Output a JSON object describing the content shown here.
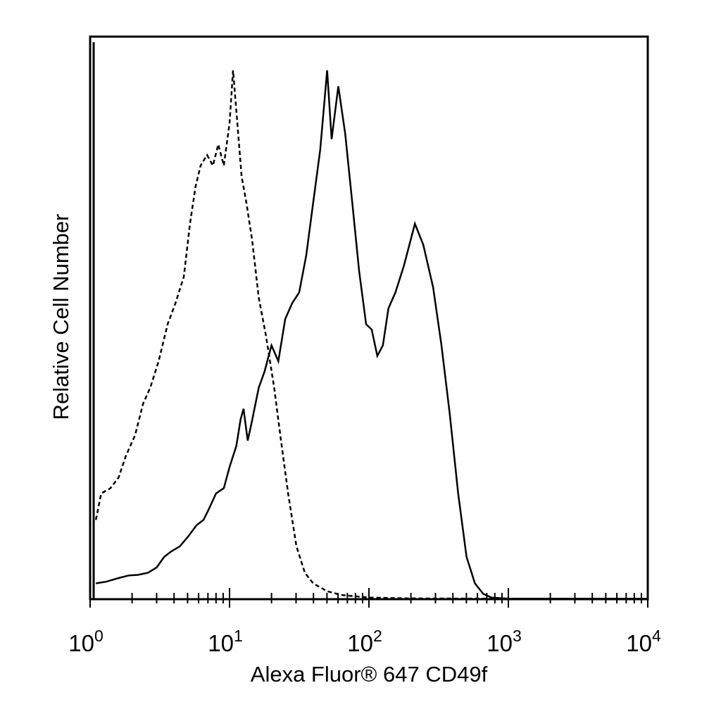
{
  "chart_data": {
    "type": "line",
    "title": "",
    "xlabel": "Alexa Fluor® 647 CD49f",
    "ylabel": "Relative Cell Number",
    "x_scale": "log",
    "xlim": [
      1,
      10000
    ],
    "ylim": [
      0,
      100
    ],
    "grid": false,
    "legend": "none",
    "x_ticks": [
      {
        "base": "10",
        "exp": "0",
        "value": 1
      },
      {
        "base": "10",
        "exp": "1",
        "value": 10
      },
      {
        "base": "10",
        "exp": "2",
        "value": 100
      },
      {
        "base": "10",
        "exp": "3",
        "value": 1000
      },
      {
        "base": "10",
        "exp": "4",
        "value": 10000
      }
    ],
    "series": [
      {
        "style": "dashed",
        "color": "#000000",
        "points": [
          [
            1.1,
            15
          ],
          [
            1.2,
            20
          ],
          [
            1.4,
            21
          ],
          [
            1.6,
            23
          ],
          [
            1.8,
            27
          ],
          [
            2.1,
            31
          ],
          [
            2.4,
            37
          ],
          [
            2.7,
            40
          ],
          [
            3.1,
            45
          ],
          [
            3.6,
            52
          ],
          [
            4.1,
            56
          ],
          [
            4.7,
            61
          ],
          [
            5.2,
            71
          ],
          [
            5.7,
            78
          ],
          [
            6.2,
            82
          ],
          [
            6.9,
            84
          ],
          [
            7.6,
            82
          ],
          [
            8.3,
            86
          ],
          [
            9.1,
            82
          ],
          [
            10.0,
            90
          ],
          [
            10.6,
            100
          ],
          [
            11.3,
            91
          ],
          [
            12.2,
            80
          ],
          [
            13.2,
            75
          ],
          [
            14.5,
            68
          ],
          [
            16.2,
            57
          ],
          [
            18.2,
            50
          ],
          [
            20.9,
            40
          ],
          [
            23.4,
            30
          ],
          [
            26.3,
            20
          ],
          [
            30.2,
            10
          ],
          [
            34.7,
            5
          ],
          [
            39.8,
            3
          ],
          [
            50.1,
            1.5
          ],
          [
            63.1,
            0.8
          ],
          [
            100,
            0.3
          ],
          [
            200,
            0.15
          ],
          [
            700,
            0.1
          ],
          [
            10000,
            0.1
          ]
        ]
      },
      {
        "style": "solid",
        "color": "#000000",
        "points": [
          [
            1.1,
            3
          ],
          [
            1.3,
            3.3
          ],
          [
            1.6,
            4
          ],
          [
            1.9,
            4.5
          ],
          [
            2.2,
            4.6
          ],
          [
            2.6,
            5
          ],
          [
            3.0,
            6
          ],
          [
            3.4,
            8
          ],
          [
            3.8,
            9
          ],
          [
            4.4,
            10
          ],
          [
            5.1,
            12
          ],
          [
            5.8,
            14
          ],
          [
            6.5,
            15
          ],
          [
            7.1,
            17
          ],
          [
            8.0,
            20
          ],
          [
            9.1,
            21
          ],
          [
            10.0,
            25
          ],
          [
            11.2,
            29
          ],
          [
            12.0,
            34
          ],
          [
            12.6,
            36
          ],
          [
            13.5,
            30
          ],
          [
            14.3,
            33
          ],
          [
            16.2,
            40
          ],
          [
            17.8,
            43
          ],
          [
            20.0,
            48
          ],
          [
            22.4,
            45
          ],
          [
            25.1,
            53
          ],
          [
            28.2,
            56
          ],
          [
            31.6,
            58
          ],
          [
            35.5,
            65
          ],
          [
            39.8,
            75
          ],
          [
            44.7,
            85
          ],
          [
            50.1,
            100
          ],
          [
            54.0,
            87
          ],
          [
            60.3,
            97
          ],
          [
            67.6,
            88
          ],
          [
            75.9,
            75
          ],
          [
            85.1,
            62
          ],
          [
            95.5,
            52
          ],
          [
            104.7,
            51
          ],
          [
            114.8,
            46
          ],
          [
            125.9,
            48
          ],
          [
            138.0,
            55
          ],
          [
            154.9,
            58
          ],
          [
            177.8,
            63
          ],
          [
            213.8,
            71
          ],
          [
            245.5,
            67
          ],
          [
            288.4,
            59
          ],
          [
            331.1,
            48
          ],
          [
            380.2,
            35
          ],
          [
            436.5,
            20
          ],
          [
            501.2,
            8
          ],
          [
            575.4,
            3
          ],
          [
            660.7,
            1
          ],
          [
            758.6,
            0.3
          ],
          [
            1000,
            0.1
          ],
          [
            10000,
            0.1
          ]
        ]
      }
    ]
  }
}
